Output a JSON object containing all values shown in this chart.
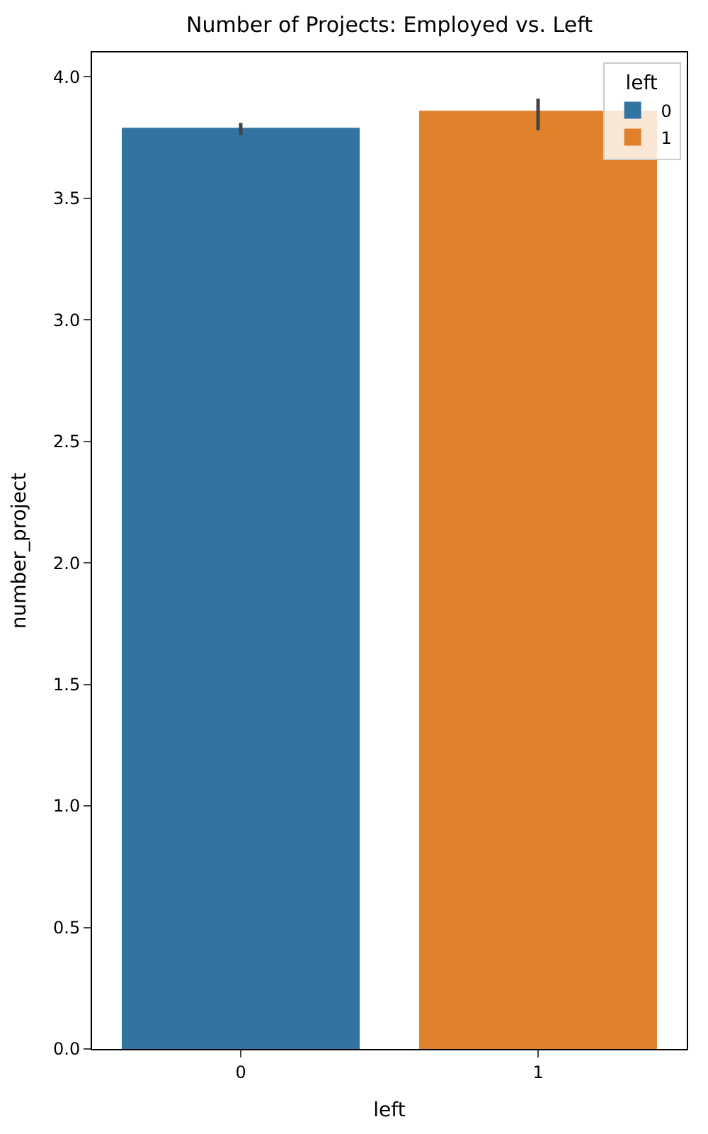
{
  "chart_data": {
    "type": "bar",
    "title": "Number of Projects: Employed vs. Left",
    "xlabel": "left",
    "ylabel": "number_project",
    "legend_title": "left",
    "legend": "top right",
    "categories": [
      "0",
      "1"
    ],
    "series": [
      {
        "name": "0",
        "color": "#3274a1",
        "values": [
          3.79,
          null
        ],
        "errors": [
          [
            3.76,
            3.81
          ],
          null
        ]
      },
      {
        "name": "1",
        "color": "#e1812c",
        "values": [
          null,
          3.86
        ],
        "errors": [
          null,
          [
            3.78,
            3.91
          ]
        ]
      }
    ],
    "ylim": [
      0,
      4.1
    ],
    "yticks": [
      {
        "value": 0,
        "label": "0.0"
      },
      {
        "value": 0.5,
        "label": "0.5"
      },
      {
        "value": 1,
        "label": "1.0"
      },
      {
        "value": 1.5,
        "label": "1.5"
      },
      {
        "value": 2,
        "label": "2.0"
      },
      {
        "value": 2.5,
        "label": "2.5"
      },
      {
        "value": 3,
        "label": "3.0"
      },
      {
        "value": 3.5,
        "label": "3.5"
      },
      {
        "value": 4,
        "label": "4.0"
      }
    ]
  }
}
